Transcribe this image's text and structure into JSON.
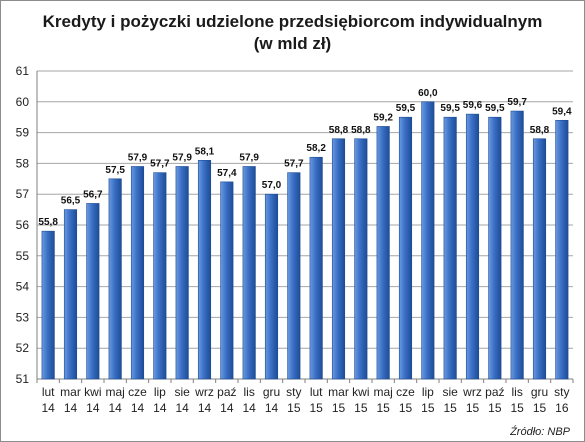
{
  "chart_data": {
    "type": "bar",
    "title_line1": "Kredyty i pożyczki udzielone przedsiębiorcom indywidualnym",
    "title_line2": "(w mld zł)",
    "source": "Źródło: NBP",
    "ylim": [
      51,
      61
    ],
    "yticks": [
      "51",
      "52",
      "53",
      "54",
      "55",
      "56",
      "57",
      "58",
      "59",
      "60",
      "61"
    ],
    "grid": true,
    "categories": [
      {
        "month": "lut",
        "year": "14"
      },
      {
        "month": "mar",
        "year": "14"
      },
      {
        "month": "kwi",
        "year": "14"
      },
      {
        "month": "maj",
        "year": "14"
      },
      {
        "month": "cze",
        "year": "14"
      },
      {
        "month": "lip",
        "year": "14"
      },
      {
        "month": "sie",
        "year": "14"
      },
      {
        "month": "wrz",
        "year": "14"
      },
      {
        "month": "paź",
        "year": "14"
      },
      {
        "month": "lis",
        "year": "14"
      },
      {
        "month": "gru",
        "year": "14"
      },
      {
        "month": "sty",
        "year": "15"
      },
      {
        "month": "lut",
        "year": "15"
      },
      {
        "month": "mar",
        "year": "15"
      },
      {
        "month": "kwi",
        "year": "15"
      },
      {
        "month": "maj",
        "year": "15"
      },
      {
        "month": "cze",
        "year": "15"
      },
      {
        "month": "lip",
        "year": "15"
      },
      {
        "month": "sie",
        "year": "15"
      },
      {
        "month": "wrz",
        "year": "15"
      },
      {
        "month": "paź",
        "year": "15"
      },
      {
        "month": "lis",
        "year": "15"
      },
      {
        "month": "gru",
        "year": "15"
      },
      {
        "month": "sty",
        "year": "16"
      }
    ],
    "values": [
      55.8,
      56.5,
      56.7,
      57.5,
      57.9,
      57.7,
      57.9,
      58.1,
      57.4,
      57.9,
      57.0,
      57.7,
      58.2,
      58.8,
      58.8,
      59.2,
      59.5,
      60.0,
      59.5,
      59.6,
      59.5,
      59.7,
      58.8,
      59.4
    ],
    "data_labels": [
      "55,8",
      "56,5",
      "56,7",
      "57,5",
      "57,9",
      "57,7",
      "57,9",
      "58,1",
      "57,4",
      "57,9",
      "57,0",
      "57,7",
      "58,2",
      "58,8",
      "58,8",
      "59,2",
      "59,5",
      "60,0",
      "59,5",
      "59,6",
      "59,5",
      "59,7",
      "58,8",
      "59,4"
    ],
    "bar_color": "#3a6fc4",
    "bar_color_light": "#6b9ae0",
    "bar_color_dark": "#1e4c97"
  }
}
